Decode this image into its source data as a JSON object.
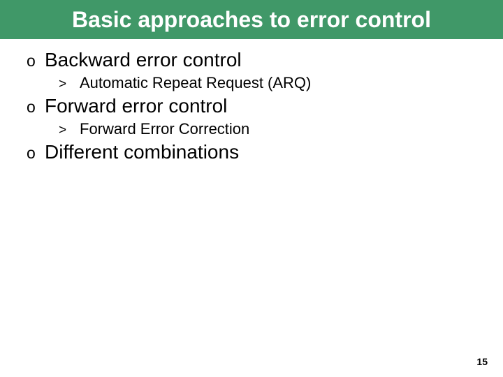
{
  "title": "Basic approaches to error control",
  "bulletL1": "o",
  "bulletL2": ">",
  "items": [
    {
      "text": "Backward error control",
      "sub": [
        {
          "text": "Automatic Repeat Request (ARQ)"
        }
      ]
    },
    {
      "text": "Forward error control",
      "sub": [
        {
          "text": "Forward Error Correction"
        }
      ]
    },
    {
      "text": "Different combinations",
      "sub": []
    }
  ],
  "pageNumber": "15",
  "colors": {
    "titleBarBg": "#409868",
    "titleText": "#ffffff",
    "bodyText": "#000000",
    "pageBg": "#ffffff"
  },
  "fontSizes": {
    "title": 32,
    "level1": 28,
    "level2": 22,
    "pageNum": 14
  }
}
